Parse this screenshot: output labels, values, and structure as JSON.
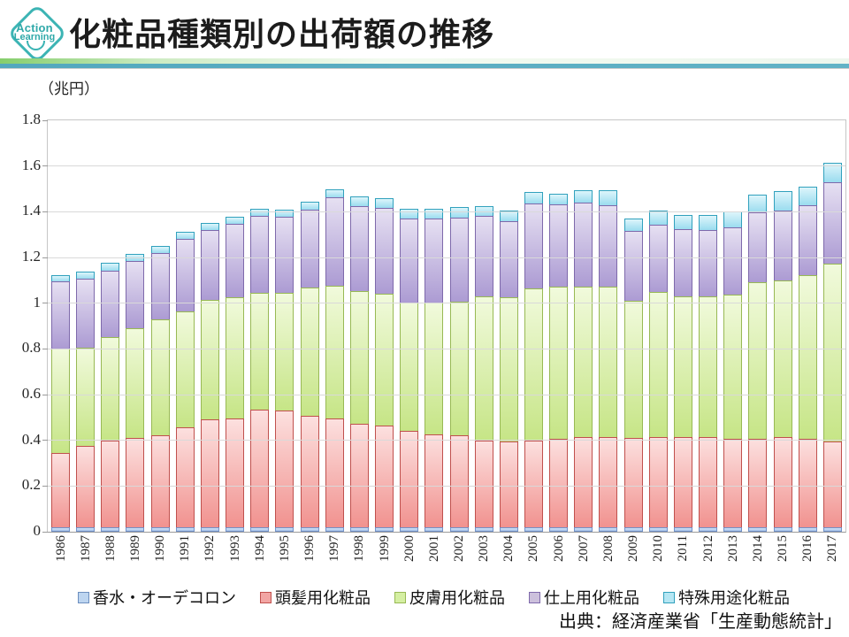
{
  "header": {
    "logo_line1": "Action",
    "logo_line2": "Learning",
    "title": "化粧品種類別の出荷額の推移"
  },
  "source": "出典：経済産業省「生産動態統計」",
  "chart_data": {
    "type": "bar",
    "stacked": true,
    "title": "化粧品種類別の出荷額の推移",
    "unit_label": "（兆円）",
    "xlabel": "",
    "ylabel": "兆円",
    "ylim": [
      0,
      1.8
    ],
    "ytick_step": 0.2,
    "grid": true,
    "legend_position": "bottom",
    "yticks": [
      {
        "label": "1.8",
        "value": 1.8
      },
      {
        "label": "1.6",
        "value": 1.6
      },
      {
        "label": "1.4",
        "value": 1.4
      },
      {
        "label": "1.2",
        "value": 1.2
      },
      {
        "label": "1",
        "value": 1.0
      },
      {
        "label": "0.8",
        "value": 0.8
      },
      {
        "label": "0.6",
        "value": 0.6
      },
      {
        "label": "0.4",
        "value": 0.4
      },
      {
        "label": "0.2",
        "value": 0.2
      },
      {
        "label": "0",
        "value": 0.0
      }
    ],
    "categories": [
      "1986",
      "1987",
      "1988",
      "1989",
      "1990",
      "1991",
      "1992",
      "1993",
      "1994",
      "1995",
      "1996",
      "1997",
      "1998",
      "1999",
      "2000",
      "2001",
      "2002",
      "2003",
      "2004",
      "2005",
      "2006",
      "2007",
      "2008",
      "2009",
      "2010",
      "2011",
      "2012",
      "2013",
      "2014",
      "2015",
      "2016",
      "2017"
    ],
    "series": [
      {
        "name": "香水・オーデコロン",
        "values": [
          0.02,
          0.02,
          0.02,
          0.02,
          0.02,
          0.02,
          0.02,
          0.02,
          0.02,
          0.02,
          0.02,
          0.02,
          0.02,
          0.02,
          0.02,
          0.02,
          0.02,
          0.02,
          0.02,
          0.02,
          0.02,
          0.02,
          0.02,
          0.02,
          0.02,
          0.02,
          0.02,
          0.02,
          0.02,
          0.02,
          0.02,
          0.02
        ],
        "fill_light": "#D3E2F6",
        "fill_dark": "#A6C3EA",
        "border": "#7191C8",
        "legend_fill": "#BDD5F0",
        "legend_border": "#6C8EBF"
      },
      {
        "name": "頭髪用化粧品",
        "values": [
          0.33,
          0.36,
          0.385,
          0.395,
          0.405,
          0.44,
          0.475,
          0.48,
          0.52,
          0.515,
          0.49,
          0.48,
          0.455,
          0.45,
          0.425,
          0.41,
          0.405,
          0.385,
          0.38,
          0.385,
          0.39,
          0.4,
          0.4,
          0.395,
          0.4,
          0.4,
          0.4,
          0.39,
          0.39,
          0.4,
          0.39,
          0.38
        ],
        "fill_light": "#FCE0DF",
        "fill_dark": "#F1928F",
        "border": "#C0504D",
        "legend_fill": "#F2A5A3",
        "legend_border": "#C0504D"
      },
      {
        "name": "皮膚用化粧品",
        "values": [
          0.46,
          0.435,
          0.455,
          0.485,
          0.51,
          0.51,
          0.525,
          0.535,
          0.515,
          0.52,
          0.565,
          0.585,
          0.585,
          0.58,
          0.565,
          0.58,
          0.59,
          0.635,
          0.635,
          0.67,
          0.67,
          0.66,
          0.66,
          0.605,
          0.64,
          0.62,
          0.62,
          0.635,
          0.69,
          0.69,
          0.72,
          0.78
        ],
        "fill_light": "#F1FADC",
        "fill_dark": "#C6E586",
        "border": "#98B954",
        "legend_fill": "#D5EFA2",
        "legend_border": "#98B954"
      },
      {
        "name": "仕上用化粧品",
        "values": [
          0.3,
          0.305,
          0.295,
          0.3,
          0.295,
          0.32,
          0.31,
          0.325,
          0.34,
          0.335,
          0.345,
          0.39,
          0.375,
          0.38,
          0.37,
          0.37,
          0.37,
          0.355,
          0.335,
          0.375,
          0.365,
          0.37,
          0.36,
          0.31,
          0.3,
          0.3,
          0.295,
          0.3,
          0.31,
          0.31,
          0.31,
          0.36
        ],
        "fill_light": "#E6E0F2",
        "fill_dark": "#AC9BD3",
        "border": "#7E69AB",
        "legend_fill": "#CCC0DC",
        "legend_border": "#7E69AB"
      },
      {
        "name": "特殊用途化粧品",
        "values": [
          0.03,
          0.035,
          0.04,
          0.035,
          0.035,
          0.035,
          0.035,
          0.035,
          0.035,
          0.035,
          0.04,
          0.04,
          0.045,
          0.045,
          0.045,
          0.045,
          0.05,
          0.045,
          0.05,
          0.055,
          0.05,
          0.06,
          0.07,
          0.06,
          0.065,
          0.065,
          0.07,
          0.075,
          0.08,
          0.09,
          0.085,
          0.09
        ],
        "fill_light": "#DDF5FB",
        "fill_dark": "#9ADCEF",
        "border": "#31A1BD",
        "legend_fill": "#B5E6F3",
        "legend_border": "#31A1BD"
      }
    ]
  }
}
